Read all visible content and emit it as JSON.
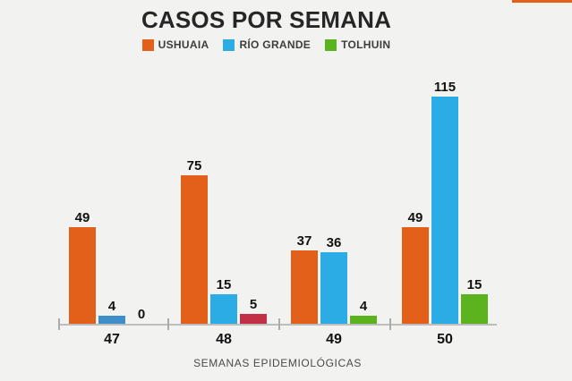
{
  "accent_color": "#E2601A",
  "background_color": "#F2F2F1",
  "chart_data": {
    "type": "bar",
    "title": "CASOS POR SEMANA",
    "xlabel": "SEMANAS EPIDEMIOLÓGICAS",
    "ylabel": "",
    "categories": [
      "47",
      "48",
      "49",
      "50"
    ],
    "series": [
      {
        "name": "USHUAIA",
        "color": "#E2601A",
        "values": [
          49,
          75,
          37,
          49
        ]
      },
      {
        "name": "RÍO GRANDE",
        "color": "#2CACE4",
        "values": [
          4,
          15,
          36,
          115
        ]
      },
      {
        "name": "TOLHUIN",
        "color": "#5BB41E",
        "values": [
          0,
          5,
          4,
          15
        ]
      }
    ],
    "color_overrides": [
      {
        "category": "47",
        "series": "RÍO GRANDE",
        "color": "#3D8EC9"
      },
      {
        "category": "48",
        "series": "TOLHUIN",
        "color": "#C32F44"
      }
    ],
    "value_labels": true,
    "ylim": [
      0,
      120
    ],
    "grid": false,
    "legend_position": "top"
  },
  "legend": {
    "items": [
      {
        "label": "USHUAIA",
        "color": "#E2601A"
      },
      {
        "label": "RÍO GRANDE",
        "color": "#2CACE4"
      },
      {
        "label": "TOLHUIN",
        "color": "#5BB41E"
      }
    ]
  }
}
